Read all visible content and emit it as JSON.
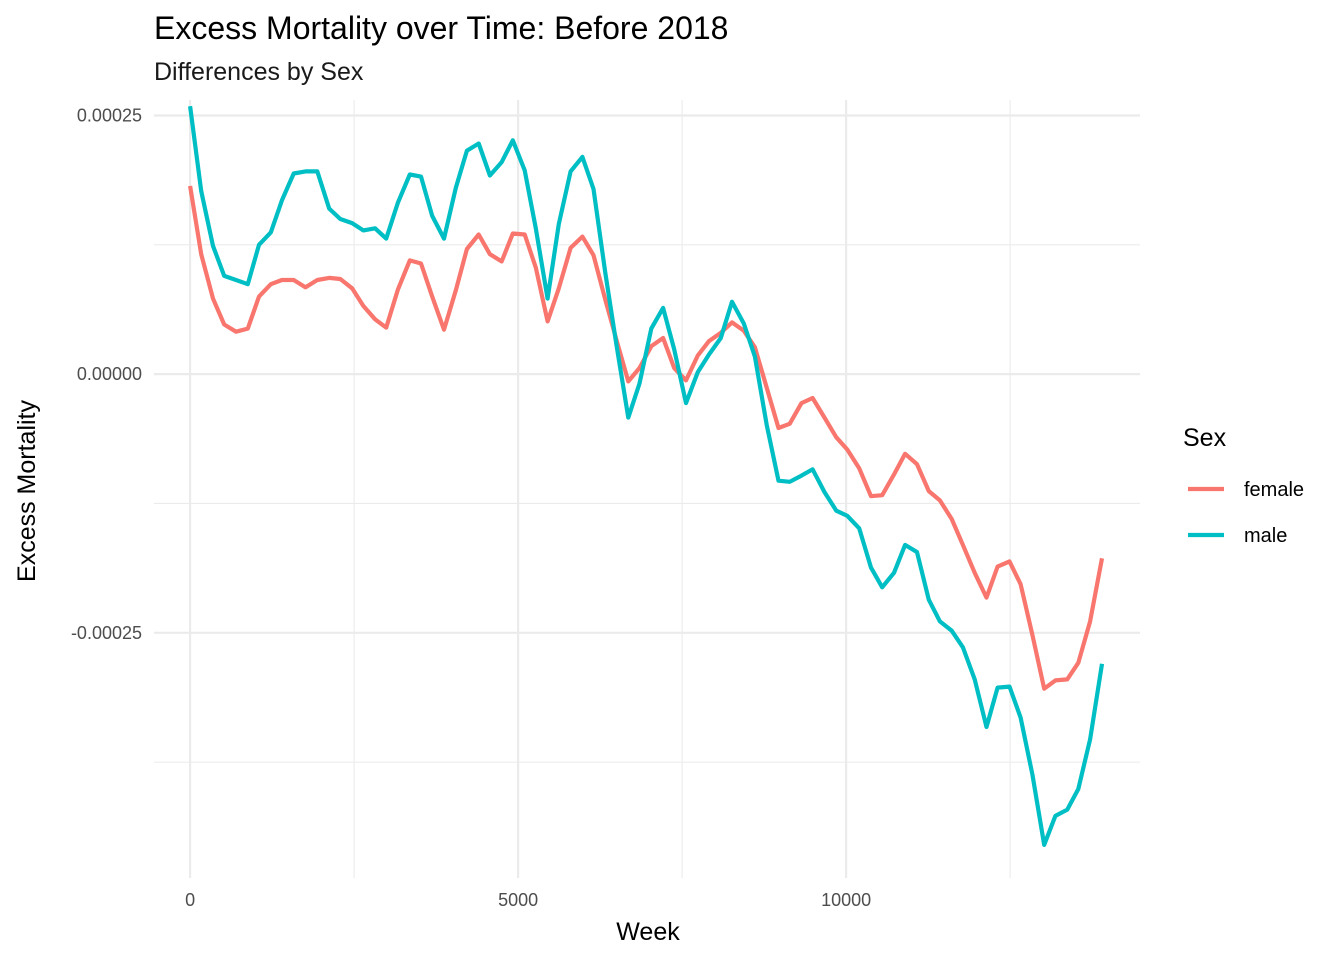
{
  "chart_data": {
    "type": "line",
    "title": "Excess Mortality over Time: Before 2018",
    "subtitle": "Differences by Sex",
    "xlabel": "Week",
    "ylabel": "Excess Mortality",
    "xlim": [
      -550,
      14480
    ],
    "ylim": [
      -0.000487,
      0.000265
    ],
    "x_ticks": [
      0,
      5000,
      10000
    ],
    "x_tick_labels": [
      "0",
      "5000",
      "10000"
    ],
    "x_minor_ticks": [
      2500,
      7500,
      12500
    ],
    "y_ticks": [
      0.00025,
      0.0,
      -0.00025
    ],
    "y_tick_labels": [
      "0.00025",
      "0.00000",
      "-0.00025"
    ],
    "y_minor_ticks": [
      0.000125,
      -0.000125,
      -0.000375
    ],
    "grid": true,
    "legend": {
      "title": "Sex",
      "placement": "right"
    },
    "series": [
      {
        "name": "female",
        "color": "#F8766D",
        "points": [
          [
            0,
            0.000182
          ],
          [
            170,
            0.000116
          ],
          [
            350,
            7.3e-05
          ],
          [
            520,
            4.8e-05
          ],
          [
            700,
            4.1e-05
          ],
          [
            880,
            4.4e-05
          ],
          [
            1050,
            7.5e-05
          ],
          [
            1230,
            8.7e-05
          ],
          [
            1400,
            9.1e-05
          ],
          [
            1580,
            9.1e-05
          ],
          [
            1760,
            8.4e-05
          ],
          [
            1940,
            9.1e-05
          ],
          [
            2120,
            9.3e-05
          ],
          [
            2290,
            9.2e-05
          ],
          [
            2470,
            8.3e-05
          ],
          [
            2640,
            6.6e-05
          ],
          [
            2820,
            5.3e-05
          ],
          [
            2990,
            4.5e-05
          ],
          [
            3170,
            8.2e-05
          ],
          [
            3350,
            0.00011
          ],
          [
            3520,
            0.000107
          ],
          [
            3690,
            7.5e-05
          ],
          [
            3870,
            4.3e-05
          ],
          [
            4050,
            8.1e-05
          ],
          [
            4220,
            0.000121
          ],
          [
            4400,
            0.000135
          ],
          [
            4570,
            0.000116
          ],
          [
            4750,
            0.000109
          ],
          [
            4920,
            0.000136
          ],
          [
            5100,
            0.000135
          ],
          [
            5270,
            0.000103
          ],
          [
            5450,
            5.1e-05
          ],
          [
            5620,
            8.3e-05
          ],
          [
            5800,
            0.000122
          ],
          [
            5980,
            0.000133
          ],
          [
            6150,
            0.000115
          ],
          [
            6330,
            7.2e-05
          ],
          [
            6500,
            3.3e-05
          ],
          [
            6680,
            -7e-06
          ],
          [
            6850,
            6e-06
          ],
          [
            7030,
            2.7e-05
          ],
          [
            7210,
            3.5e-05
          ],
          [
            7380,
            6e-06
          ],
          [
            7560,
            -6e-06
          ],
          [
            7740,
            1.8e-05
          ],
          [
            7910,
            3.2e-05
          ],
          [
            8090,
            4e-05
          ],
          [
            8260,
            5e-05
          ],
          [
            8440,
            4.2e-05
          ],
          [
            8610,
            2.6e-05
          ],
          [
            8790,
            -1.3e-05
          ],
          [
            8970,
            -5.2e-05
          ],
          [
            9140,
            -4.8e-05
          ],
          [
            9320,
            -2.8e-05
          ],
          [
            9490,
            -2.3e-05
          ],
          [
            9670,
            -4.2e-05
          ],
          [
            9850,
            -6.1e-05
          ],
          [
            10020,
            -7.3e-05
          ],
          [
            10200,
            -9.1e-05
          ],
          [
            10380,
            -0.000118
          ],
          [
            10550,
            -0.000117
          ],
          [
            10730,
            -9.7e-05
          ],
          [
            10900,
            -7.7e-05
          ],
          [
            11080,
            -8.7e-05
          ],
          [
            11260,
            -0.000113
          ],
          [
            11430,
            -0.000122
          ],
          [
            11610,
            -0.00014
          ],
          [
            11780,
            -0.000165
          ],
          [
            11960,
            -0.000192
          ],
          [
            12140,
            -0.000216
          ],
          [
            12310,
            -0.000186
          ],
          [
            12490,
            -0.000181
          ],
          [
            12660,
            -0.000203
          ],
          [
            12840,
            -0.000252
          ],
          [
            13020,
            -0.000304
          ],
          [
            13190,
            -0.000296
          ],
          [
            13370,
            -0.000295
          ],
          [
            13540,
            -0.000279
          ],
          [
            13720,
            -0.000239
          ],
          [
            13900,
            -0.000178
          ]
        ]
      },
      {
        "name": "male",
        "color": "#00BFC4",
        "points": [
          [
            0,
            0.000259
          ],
          [
            170,
            0.000177
          ],
          [
            350,
            0.000124
          ],
          [
            520,
            9.5e-05
          ],
          [
            700,
            9.1e-05
          ],
          [
            880,
            8.7e-05
          ],
          [
            1050,
            0.000125
          ],
          [
            1230,
            0.000137
          ],
          [
            1400,
            0.000168
          ],
          [
            1580,
            0.000194
          ],
          [
            1760,
            0.000196
          ],
          [
            1940,
            0.000196
          ],
          [
            2120,
            0.00016
          ],
          [
            2290,
            0.00015
          ],
          [
            2470,
            0.000146
          ],
          [
            2640,
            0.000139
          ],
          [
            2820,
            0.000141
          ],
          [
            2990,
            0.000131
          ],
          [
            3170,
            0.000166
          ],
          [
            3350,
            0.000193
          ],
          [
            3520,
            0.000191
          ],
          [
            3690,
            0.000153
          ],
          [
            3870,
            0.000131
          ],
          [
            4050,
            0.00018
          ],
          [
            4220,
            0.000216
          ],
          [
            4400,
            0.000223
          ],
          [
            4570,
            0.000192
          ],
          [
            4750,
            0.000205
          ],
          [
            4920,
            0.000226
          ],
          [
            5100,
            0.000197
          ],
          [
            5270,
            0.000141
          ],
          [
            5450,
            7.3e-05
          ],
          [
            5620,
            0.000145
          ],
          [
            5800,
            0.000196
          ],
          [
            5980,
            0.00021
          ],
          [
            6150,
            0.000179
          ],
          [
            6330,
            9.8e-05
          ],
          [
            6500,
            2.8e-05
          ],
          [
            6680,
            -4.2e-05
          ],
          [
            6850,
            -9e-06
          ],
          [
            7030,
            4.4e-05
          ],
          [
            7210,
            6.4e-05
          ],
          [
            7380,
            2.4e-05
          ],
          [
            7560,
            -2.8e-05
          ],
          [
            7740,
            2e-06
          ],
          [
            7910,
            1.9e-05
          ],
          [
            8090,
            3.5e-05
          ],
          [
            8260,
            7e-05
          ],
          [
            8440,
            4.9e-05
          ],
          [
            8610,
            1.7e-05
          ],
          [
            8790,
            -4.9e-05
          ],
          [
            8970,
            -0.000103
          ],
          [
            9140,
            -0.000104
          ],
          [
            9320,
            -9.8e-05
          ],
          [
            9490,
            -9.2e-05
          ],
          [
            9670,
            -0.000114
          ],
          [
            9850,
            -0.000132
          ],
          [
            10020,
            -0.000137
          ],
          [
            10200,
            -0.000149
          ],
          [
            10380,
            -0.000187
          ],
          [
            10550,
            -0.000206
          ],
          [
            10730,
            -0.000192
          ],
          [
            10900,
            -0.000165
          ],
          [
            11080,
            -0.000172
          ],
          [
            11260,
            -0.000218
          ],
          [
            11430,
            -0.000239
          ],
          [
            11610,
            -0.000248
          ],
          [
            11780,
            -0.000264
          ],
          [
            11960,
            -0.000295
          ],
          [
            12140,
            -0.000341
          ],
          [
            12310,
            -0.000303
          ],
          [
            12490,
            -0.000302
          ],
          [
            12660,
            -0.000332
          ],
          [
            12840,
            -0.000387
          ],
          [
            13020,
            -0.000455
          ],
          [
            13190,
            -0.000427
          ],
          [
            13370,
            -0.000421
          ],
          [
            13540,
            -0.000401
          ],
          [
            13720,
            -0.000353
          ],
          [
            13900,
            -0.00028
          ]
        ]
      }
    ]
  }
}
